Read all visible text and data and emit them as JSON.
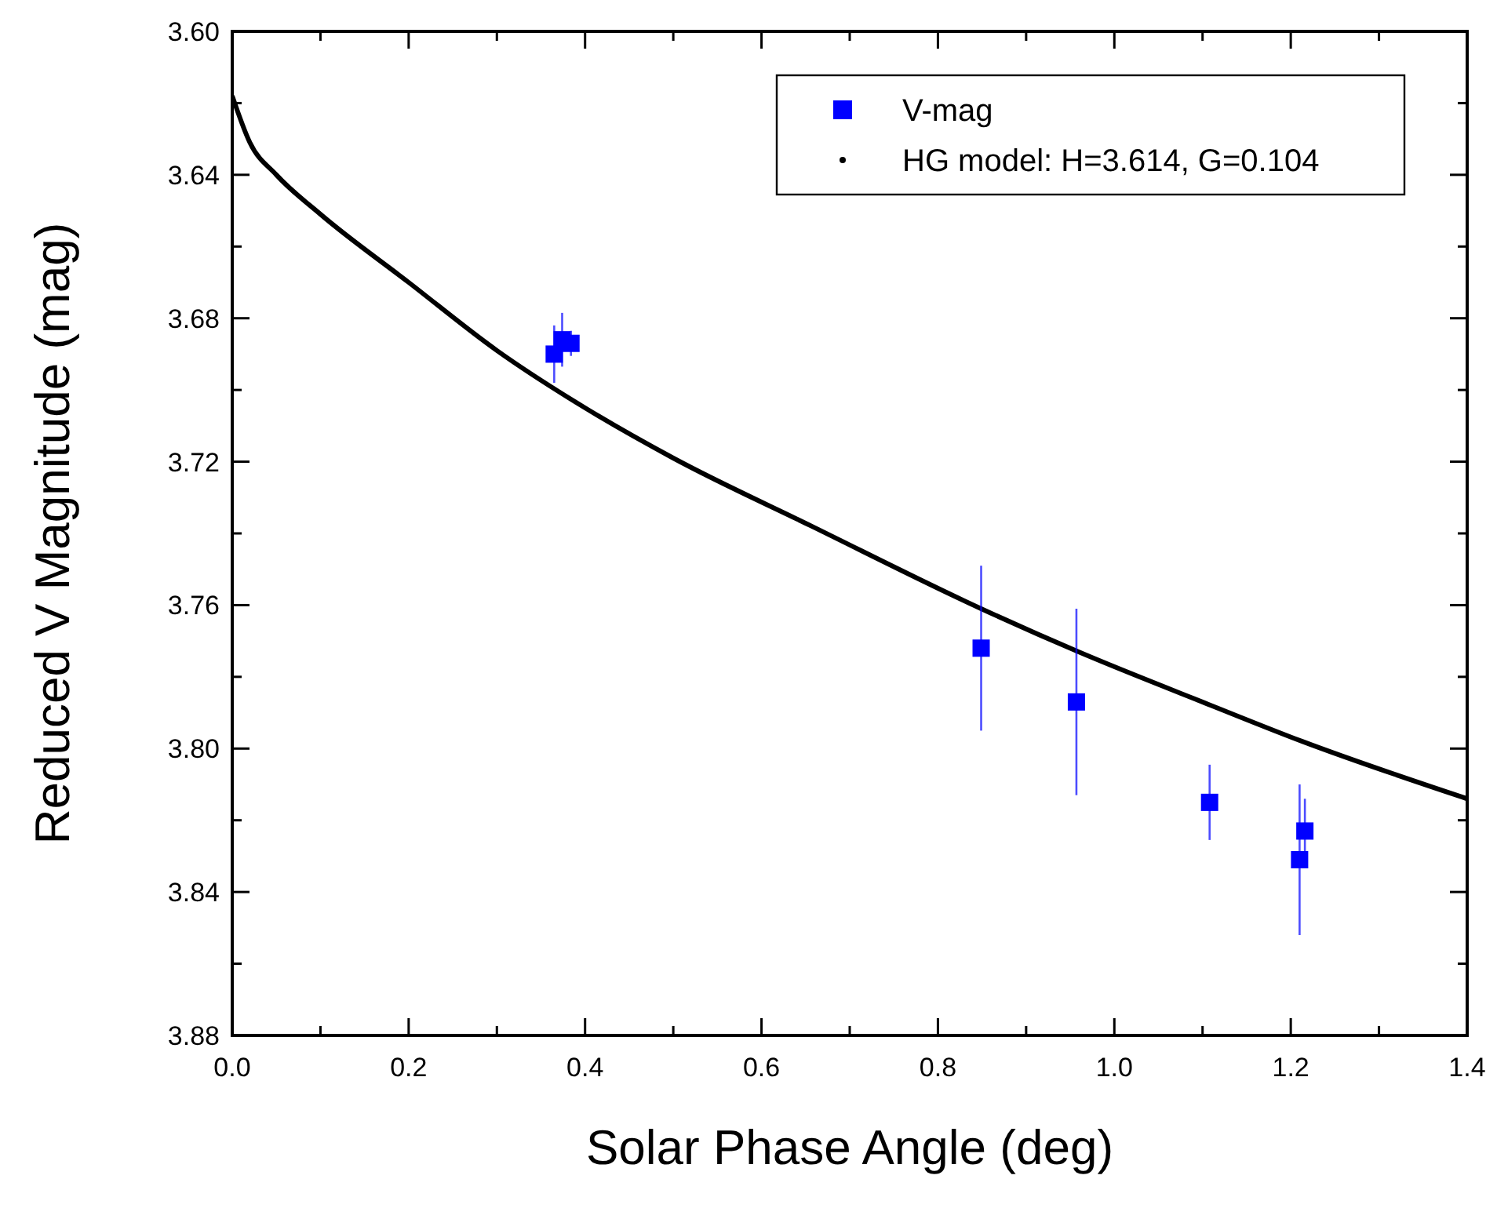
{
  "chart_data": {
    "type": "scatter",
    "xlabel": "Solar Phase Angle (deg)",
    "ylabel": "Reduced V Magnitude (mag)",
    "xlim": [
      0,
      1.4
    ],
    "ylim": [
      3.88,
      3.6
    ],
    "xticks": [
      {
        "value": 0,
        "label": "0.0"
      },
      {
        "value": 0.1,
        "label": null
      },
      {
        "value": 0.2,
        "label": "0.2"
      },
      {
        "value": 0.3,
        "label": null
      },
      {
        "value": 0.4,
        "label": "0.4"
      },
      {
        "value": 0.5,
        "label": null
      },
      {
        "value": 0.6,
        "label": "0.6"
      },
      {
        "value": 0.7,
        "label": null
      },
      {
        "value": 0.8,
        "label": "0.8"
      },
      {
        "value": 0.9,
        "label": null
      },
      {
        "value": 1,
        "label": "1.0"
      },
      {
        "value": 1.1,
        "label": null
      },
      {
        "value": 1.2,
        "label": "1.2"
      },
      {
        "value": 1.3,
        "label": null
      },
      {
        "value": 1.4,
        "label": "1.4"
      }
    ],
    "yticks": [
      {
        "value": 3.6,
        "label": "3.60"
      },
      {
        "value": 3.62,
        "label": null
      },
      {
        "value": 3.64,
        "label": "3.64"
      },
      {
        "value": 3.66,
        "label": null
      },
      {
        "value": 3.68,
        "label": "3.68"
      },
      {
        "value": 3.7,
        "label": null
      },
      {
        "value": 3.72,
        "label": "3.72"
      },
      {
        "value": 3.74,
        "label": null
      },
      {
        "value": 3.76,
        "label": "3.76"
      },
      {
        "value": 3.78,
        "label": null
      },
      {
        "value": 3.8,
        "label": "3.80"
      },
      {
        "value": 3.82,
        "label": null
      },
      {
        "value": 3.84,
        "label": "3.84"
      },
      {
        "value": 3.86,
        "label": null
      },
      {
        "value": 3.88,
        "label": "3.88"
      }
    ],
    "grid": false,
    "legend": "top right",
    "series": [
      {
        "name": "V-mag",
        "color": "#0000ff",
        "marker": "square",
        "x": [
          0.365,
          0.374,
          0.384,
          0.849,
          0.957,
          1.108,
          1.21,
          1.216
        ],
        "values": [
          3.69,
          3.686,
          3.687,
          3.772,
          3.787,
          3.815,
          3.831,
          3.823
        ],
        "errors": [
          0.008,
          0.0075,
          0.0035,
          0.023,
          0.026,
          0.0105,
          0.021,
          0.009
        ]
      },
      {
        "name": "HG model: H=3.614, G=0.104",
        "type": "line",
        "color": "#000000",
        "x": [
          0,
          0.02,
          0.05,
          0.1,
          0.2,
          0.3,
          0.4,
          0.5,
          0.657,
          0.849,
          0.959,
          1.11,
          1.213,
          1.4
        ],
        "values": [
          3.618,
          3.631,
          3.64,
          3.651,
          3.67,
          3.689,
          3.705,
          3.719,
          3.738,
          3.761,
          3.773,
          3.788,
          3.798,
          3.814
        ]
      }
    ]
  }
}
